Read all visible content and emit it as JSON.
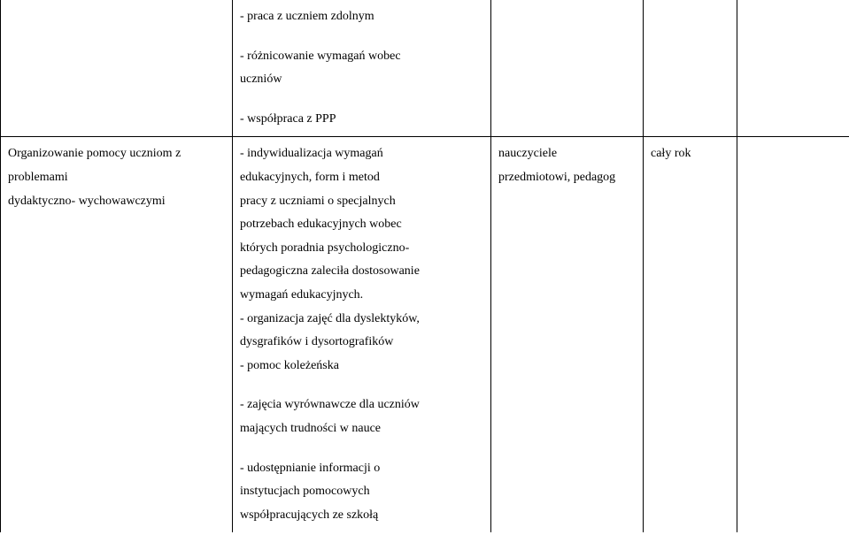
{
  "table": {
    "row1": {
      "col1": "",
      "col2": {
        "line1": "- praca z uczniem zdolnym",
        "line2": "- różnicowanie wymagań wobec",
        "line3": "uczniów",
        "line4": "- współpraca z PPP"
      },
      "col3": "",
      "col4": "",
      "col5": ""
    },
    "row2": {
      "col1": {
        "line1": "Organizowanie pomocy uczniom z problemami",
        "line2": "dydaktyczno- wychowawczymi"
      },
      "col2": {
        "p1l1": "- indywidualizacja wymagań",
        "p1l2": "edukacyjnych, form i metod",
        "p1l3": "pracy z uczniami o specjalnych",
        "p1l4": "potrzebach edukacyjnych wobec",
        "p1l5": "których poradnia psychologiczno-",
        "p1l6": "pedagogiczna  zaleciła dostosowanie",
        "p1l7": "wymagań edukacyjnych.",
        "p2l1": "- organizacja zajęć dla dyslektyków,",
        "p2l2": "dysgrafików i dysortografików",
        "p3": "- pomoc koleżeńska",
        "p4l1": "- zajęcia wyrównawcze dla uczniów",
        "p4l2": "mających trudności w nauce",
        "p5l1": "- udostępnianie informacji o",
        "p5l2": "instytucjach pomocowych",
        "p5l3": "współpracujących ze szkołą"
      },
      "col3": {
        "line1": "nauczyciele",
        "line2": "przedmiotowi, pedagog"
      },
      "col4": "cały rok",
      "col5": ""
    }
  }
}
